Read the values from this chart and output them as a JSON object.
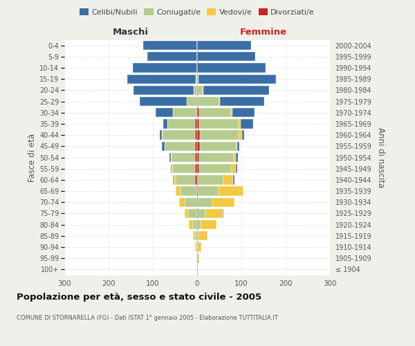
{
  "age_groups": [
    "100+",
    "95-99",
    "90-94",
    "85-89",
    "80-84",
    "75-79",
    "70-74",
    "65-69",
    "60-64",
    "55-59",
    "50-54",
    "45-49",
    "40-44",
    "35-39",
    "30-34",
    "25-29",
    "20-24",
    "15-19",
    "10-14",
    "5-9",
    "0-4"
  ],
  "birth_years": [
    "≤ 1904",
    "1905-1909",
    "1910-1914",
    "1915-1919",
    "1920-1924",
    "1925-1929",
    "1930-1934",
    "1935-1939",
    "1940-1944",
    "1945-1949",
    "1950-1954",
    "1955-1959",
    "1960-1964",
    "1965-1969",
    "1970-1974",
    "1975-1979",
    "1980-1984",
    "1985-1989",
    "1990-1994",
    "1995-1999",
    "2000-2004"
  ],
  "male_celibi": [
    0,
    0,
    0,
    0,
    0,
    0,
    0,
    1,
    1,
    2,
    4,
    5,
    5,
    10,
    38,
    105,
    135,
    155,
    145,
    112,
    122
  ],
  "male_coniugati": [
    0,
    1,
    2,
    5,
    10,
    20,
    28,
    36,
    44,
    50,
    54,
    68,
    73,
    63,
    53,
    24,
    8,
    3,
    0,
    0,
    0
  ],
  "male_vedovi": [
    0,
    1,
    3,
    4,
    8,
    8,
    12,
    10,
    5,
    3,
    1,
    1,
    1,
    0,
    0,
    0,
    0,
    0,
    0,
    0,
    0
  ],
  "male_divorziati": [
    0,
    0,
    0,
    0,
    0,
    0,
    0,
    2,
    4,
    5,
    4,
    5,
    5,
    4,
    2,
    0,
    0,
    0,
    0,
    0,
    0
  ],
  "female_nubili": [
    0,
    0,
    0,
    0,
    0,
    1,
    1,
    1,
    2,
    2,
    4,
    5,
    5,
    28,
    50,
    100,
    148,
    175,
    155,
    132,
    122
  ],
  "female_coniugate": [
    1,
    0,
    1,
    3,
    8,
    18,
    33,
    48,
    58,
    73,
    78,
    83,
    88,
    88,
    73,
    48,
    12,
    3,
    0,
    0,
    0
  ],
  "female_vedove": [
    1,
    4,
    8,
    20,
    35,
    40,
    50,
    55,
    22,
    10,
    5,
    2,
    8,
    5,
    3,
    2,
    1,
    0,
    0,
    0,
    0
  ],
  "female_divorziate": [
    0,
    0,
    0,
    0,
    0,
    0,
    1,
    1,
    2,
    5,
    5,
    6,
    6,
    5,
    4,
    2,
    1,
    0,
    0,
    0,
    0
  ],
  "colors": {
    "celibi": "#3a6ea5",
    "coniugati": "#b5cc8e",
    "vedovi": "#f5c842",
    "divorziati": "#cc2222"
  },
  "xlim": 300,
  "title": "Popolazione per età, sesso e stato civile - 2005",
  "subtitle": "COMUNE DI STORNARELLA (FG) - Dati ISTAT 1° gennaio 2005 - Elaborazione TUTTITALIA.IT",
  "ylabel_left": "Fasce di età",
  "ylabel_right": "Anni di nascita",
  "xlabel_left": "Maschi",
  "xlabel_right": "Femmine",
  "bg_color": "#f0f0eb",
  "plot_bg": "#ffffff",
  "grid_color": "#cccccc"
}
